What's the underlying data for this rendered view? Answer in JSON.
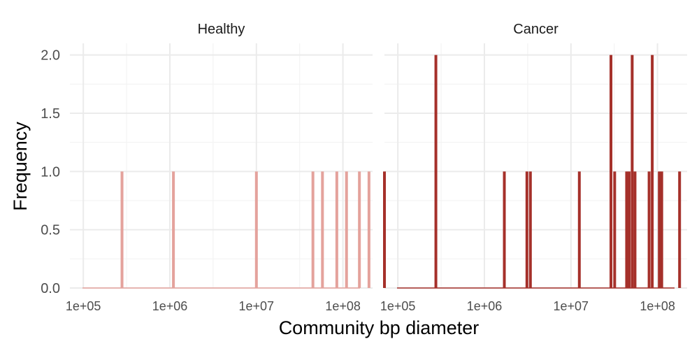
{
  "chart_data": {
    "type": "bar",
    "subtype": "histogram",
    "xlabel": "Community bp diameter",
    "ylabel": "Frequency",
    "x_scale": "log10",
    "x_range": [
      70000,
      220000000
    ],
    "x_ticks": [
      100000,
      1000000,
      10000000,
      100000000
    ],
    "x_tick_labels": [
      "1e+05",
      "1e+06",
      "1e+07",
      "1e+08"
    ],
    "ylim": [
      0,
      2.1
    ],
    "y_ticks": [
      0,
      0.5,
      1,
      1.5,
      2
    ],
    "y_tick_labels": [
      "0.0",
      "0.5",
      "1.0",
      "1.5",
      "2.0"
    ],
    "grid": true,
    "legend": "none",
    "panels": [
      {
        "name": "Healthy",
        "color": "#e4a29c",
        "bins": [
          {
            "x": 280000,
            "count": 1
          },
          {
            "x": 1100000,
            "count": 1
          },
          {
            "x": 10000000,
            "count": 1
          },
          {
            "x": 45000000,
            "count": 1
          },
          {
            "x": 58000000,
            "count": 1
          },
          {
            "x": 85000000,
            "count": 1
          },
          {
            "x": 110000000,
            "count": 1
          },
          {
            "x": 155000000,
            "count": 1
          },
          {
            "x": 200000000,
            "count": 1
          }
        ]
      },
      {
        "name": "Cancer",
        "color": "#a5302a",
        "bins": [
          {
            "x": 70000,
            "count": 1
          },
          {
            "x": 275000,
            "count": 2
          },
          {
            "x": 1700000,
            "count": 1
          },
          {
            "x": 3100000,
            "count": 1
          },
          {
            "x": 3400000,
            "count": 1
          },
          {
            "x": 12500000,
            "count": 1
          },
          {
            "x": 29000000,
            "count": 2
          },
          {
            "x": 32000000,
            "count": 1
          },
          {
            "x": 44000000,
            "count": 1
          },
          {
            "x": 47000000,
            "count": 1
          },
          {
            "x": 51000000,
            "count": 2
          },
          {
            "x": 55000000,
            "count": 1
          },
          {
            "x": 80000000,
            "count": 1
          },
          {
            "x": 87000000,
            "count": 2
          },
          {
            "x": 105000000,
            "count": 1
          },
          {
            "x": 112000000,
            "count": 1
          },
          {
            "x": 180000000,
            "count": 1
          }
        ]
      }
    ]
  }
}
